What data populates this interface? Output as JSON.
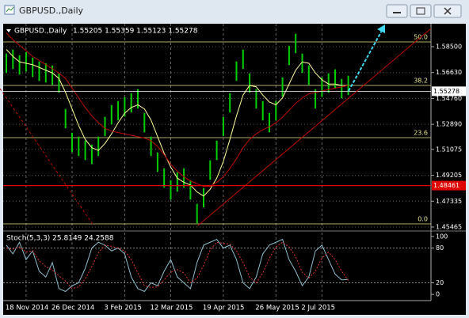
{
  "window_title": "GBPUSD.,Daily",
  "chart_data": [
    {
      "type": "range",
      "title": "GBPUSD.,Daily",
      "subtitle": "1.55205 1.55359 1.55123 1.55278",
      "categories": [
        null,
        null,
        null,
        "18 Nov 2014",
        null,
        null,
        null,
        null,
        null,
        null,
        "26 Dec 2014",
        null,
        null,
        null,
        null,
        null,
        null,
        null,
        "3 Feb 2015",
        null,
        null,
        null,
        null,
        null,
        null,
        "12 Mar 2015",
        null,
        null,
        null,
        null,
        null,
        null,
        null,
        "19 Apr 2015",
        null,
        null,
        null,
        null,
        null,
        null,
        null,
        "26 May 2015",
        null,
        null,
        null,
        null,
        null,
        null,
        "2 Jul 2015",
        null,
        null,
        null,
        null
      ],
      "high": [
        1.58,
        1.5829,
        1.5788,
        1.5811,
        1.5771,
        1.5743,
        1.5731,
        1.5714,
        1.5657,
        1.54,
        1.5228,
        1.52,
        1.5171,
        1.5142,
        1.52,
        1.5343,
        1.5428,
        1.5457,
        1.5485,
        1.5514,
        1.5543,
        1.5371,
        1.52,
        1.5085,
        1.4971,
        1.4885,
        1.4942,
        1.4971,
        1.4885,
        1.4714,
        1.4828,
        1.5028,
        1.5171,
        1.5343,
        1.5514,
        1.5743,
        1.5829,
        1.5657,
        1.5543,
        1.5457,
        1.5371,
        1.5457,
        1.5628,
        1.5857,
        1.5943,
        1.58,
        1.5714,
        1.5543,
        1.5628,
        1.5657,
        1.5686,
        1.5617,
        1.564
      ],
      "low": [
        1.566,
        1.5689,
        1.5648,
        1.5671,
        1.5631,
        1.5603,
        1.5591,
        1.5574,
        1.5517,
        1.526,
        1.5088,
        1.506,
        1.5031,
        1.5002,
        1.506,
        1.5203,
        1.5288,
        1.5317,
        1.5345,
        1.5374,
        1.5403,
        1.5231,
        1.506,
        1.4945,
        1.4831,
        1.4745,
        1.4802,
        1.4831,
        1.4745,
        1.4574,
        1.4688,
        1.4888,
        1.5031,
        1.5203,
        1.5374,
        1.5603,
        1.5689,
        1.5517,
        1.5403,
        1.5317,
        1.5231,
        1.5317,
        1.5488,
        1.5717,
        1.5803,
        1.566,
        1.5574,
        1.5403,
        1.5488,
        1.5517,
        1.5546,
        1.5477,
        1.55
      ],
      "color": "#00d000",
      "lines": [
        {
          "color": "#ffff99",
          "values": [
            1.583,
            1.578,
            1.574,
            1.573,
            1.572,
            1.57,
            1.568,
            1.566,
            1.562,
            1.552,
            1.54,
            1.528,
            1.518,
            1.512,
            1.51,
            1.515,
            1.522,
            1.53,
            1.537,
            1.541,
            1.543,
            1.54,
            1.532,
            1.52,
            1.508,
            1.498,
            1.49,
            1.487,
            1.485,
            1.48,
            1.477,
            1.482,
            1.49,
            1.502,
            1.518,
            1.535,
            1.55,
            1.557,
            1.556,
            1.55,
            1.545,
            1.543,
            1.548,
            1.558,
            1.568,
            1.574,
            1.573,
            1.566,
            1.561,
            1.558,
            1.558,
            1.557,
            1.557
          ]
        },
        {
          "color": "#c00000",
          "values": [
            1.595,
            1.59,
            1.586,
            1.582,
            1.578,
            1.575,
            1.572,
            1.569,
            1.566,
            1.562,
            1.555,
            1.548,
            1.541,
            1.535,
            1.53,
            1.526,
            1.524,
            1.523,
            1.522,
            1.521,
            1.52,
            1.519,
            1.517,
            1.513,
            1.507,
            1.5,
            1.495,
            1.491,
            1.488,
            1.486,
            1.484,
            1.484,
            1.487,
            1.491,
            1.497,
            1.504,
            1.512,
            1.518,
            1.522,
            1.525,
            1.527,
            1.53,
            1.534,
            1.539,
            1.544,
            1.548,
            1.551,
            1.552,
            1.553,
            1.554,
            1.555,
            1.556,
            1.557
          ]
        }
      ],
      "ylim": [
        1.45294,
        1.60044
      ],
      "yticks": [
        {
          "value": 1.585,
          "label": "1.58500"
        },
        {
          "value": 1.5663,
          "label": "1.56630"
        },
        {
          "value": 1.5476,
          "label": "1.54760"
        },
        {
          "value": 1.5289,
          "label": "1.52890"
        },
        {
          "value": 1.51075,
          "label": "1.51075"
        },
        {
          "value": 1.49205,
          "label": "1.49205"
        },
        {
          "value": 1.47335,
          "label": "1.47335"
        },
        {
          "value": 1.45465,
          "label": "1.45465"
        }
      ],
      "levels": [
        {
          "label": "50.0",
          "value": 1.58843
        },
        {
          "label": "38.2",
          "value": 1.55698
        },
        {
          "label": "23.6",
          "value": 1.51925
        },
        {
          "label": "0.0",
          "value": 1.45693
        }
      ],
      "price_marks": [
        {
          "value": 1.55278,
          "color": "#ffffff"
        },
        {
          "value": 1.48461,
          "color": "#e00000"
        }
      ],
      "grid": true
    },
    {
      "type": "line",
      "title": "Stoch(5,3,3) 25.8149 24.2588",
      "series": [
        {
          "color": "#8fbfd0",
          "values": [
            85,
            70,
            90,
            60,
            75,
            40,
            30,
            55,
            10,
            5,
            15,
            20,
            45,
            80,
            90,
            85,
            75,
            80,
            70,
            30,
            10,
            5,
            20,
            15,
            40,
            60,
            30,
            20,
            10,
            55,
            85,
            90,
            95,
            80,
            85,
            60,
            20,
            10,
            30,
            70,
            85,
            90,
            95,
            60,
            40,
            15,
            30,
            75,
            85,
            60,
            35,
            25,
            26
          ]
        },
        {
          "color": "#e03030",
          "values": [
            80,
            78,
            82,
            73,
            75,
            58,
            48,
            42,
            32,
            23,
            10,
            13,
            27,
            48,
            72,
            85,
            83,
            80,
            75,
            60,
            37,
            15,
            12,
            13,
            25,
            38,
            43,
            37,
            20,
            28,
            50,
            77,
            90,
            88,
            87,
            75,
            55,
            30,
            20,
            37,
            62,
            82,
            90,
            82,
            65,
            38,
            28,
            40,
            63,
            73,
            60,
            40,
            24
          ]
        }
      ],
      "ylim": [
        -8,
        104
      ],
      "yticks": [
        100,
        80,
        20,
        0
      ]
    }
  ]
}
